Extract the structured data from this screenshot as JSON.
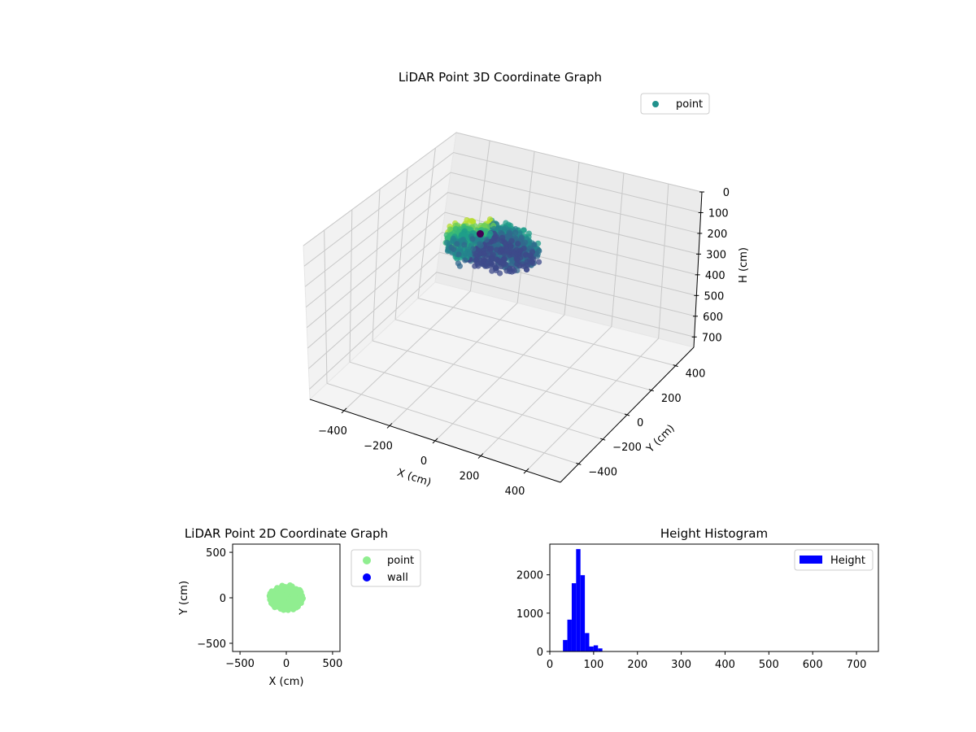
{
  "figure": {
    "charts": [
      {
        "id": "lidar-3d",
        "title": "LiDAR Point 3D Coordinate Graph",
        "legend": {
          "label": "point"
        }
      },
      {
        "id": "lidar-2d",
        "title": "LiDAR Point 2D Coordinate Graph",
        "legend": [
          {
            "label": "point"
          },
          {
            "label": "wall"
          }
        ]
      },
      {
        "id": "height-hist",
        "title": "Height Histogram",
        "legend": {
          "label": "Height"
        }
      }
    ]
  },
  "chart_data": [
    {
      "type": "scatter",
      "title": "LiDAR Point 3D Coordinate Graph",
      "xlabel": "X (cm)",
      "ylabel": "Y (cm)",
      "zlabel": "H (cm)",
      "xticks": [
        "−400",
        "−200",
        "0",
        "200",
        "400"
      ],
      "yticks": [
        "−400",
        "−200",
        "0",
        "200",
        "400"
      ],
      "zticks": [
        "0",
        "100",
        "200",
        "300",
        "400",
        "500",
        "600",
        "700"
      ],
      "xlim": [
        -550,
        550
      ],
      "ylim": [
        -550,
        550
      ],
      "zlim": [
        0,
        750
      ],
      "z_inverted": true,
      "legend_position": "top-right",
      "series": [
        {
          "name": "point",
          "color": "#21918c",
          "colormap": "viridis",
          "description_cloud": {
            "x_range": [
              -200,
              200
            ],
            "y_range": [
              -150,
              150
            ],
            "h_range": [
              30,
              130
            ]
          }
        }
      ]
    },
    {
      "type": "scatter",
      "title": "LiDAR Point 2D Coordinate Graph",
      "xlabel": "X (cm)",
      "ylabel": "Y (cm)",
      "xticks": [
        "−500",
        "0",
        "500"
      ],
      "yticks": [
        "−500",
        "0",
        "500"
      ],
      "xlim": [
        -580,
        580
      ],
      "ylim": [
        -590,
        590
      ],
      "legend_position": "outside-right",
      "series": [
        {
          "name": "point",
          "color": "#90ee90",
          "x_range": [
            -200,
            200
          ],
          "y_range": [
            -160,
            150
          ]
        },
        {
          "name": "wall",
          "color": "#0000ff",
          "points": []
        }
      ]
    },
    {
      "type": "bar",
      "title": "Height Histogram",
      "xlabel": "",
      "ylabel": "",
      "xticks": [
        "0",
        "100",
        "200",
        "300",
        "400",
        "500",
        "600",
        "700"
      ],
      "yticks": [
        "0",
        "1000",
        "2000"
      ],
      "xlim": [
        0,
        750
      ],
      "ylim": [
        0,
        2800
      ],
      "bin_width": 10,
      "bins_start": [
        20,
        30,
        40,
        50,
        60,
        70,
        80,
        90,
        100,
        110
      ],
      "values": [
        0,
        300,
        830,
        1780,
        2670,
        1990,
        480,
        130,
        160,
        80
      ],
      "legend_position": "top-right",
      "series": [
        {
          "name": "Height",
          "color": "#0000ff"
        }
      ]
    }
  ]
}
